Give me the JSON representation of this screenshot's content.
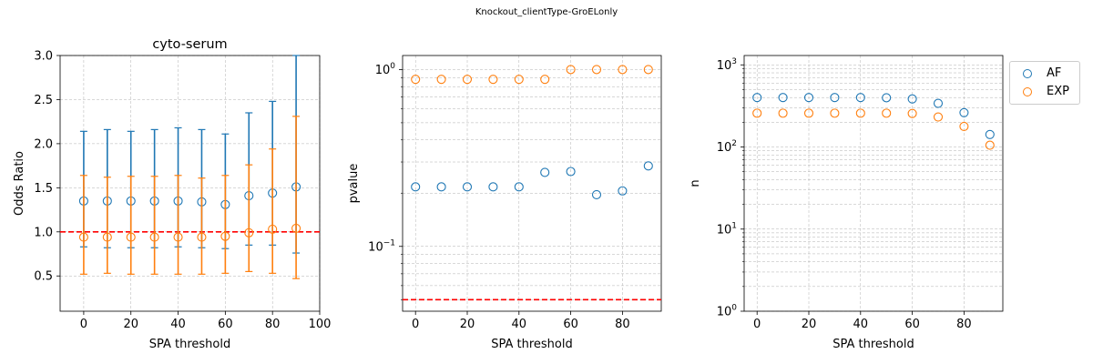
{
  "figure": {
    "suptitle": "Knockout_clientType-GroELonly"
  },
  "colors": {
    "AF": "#1f77b4",
    "EXP": "#ff7f0e",
    "ref_line": "#ff0000",
    "grid": "#b0b0b0"
  },
  "legend": {
    "placement": "outside-top-right",
    "entries": [
      "AF",
      "EXP"
    ]
  },
  "chart_data": [
    {
      "type": "scatter",
      "title": "cyto-serum",
      "xlabel": "SPA threshold",
      "ylabel": "Odds Ratio",
      "xlim": [
        -10,
        100
      ],
      "ylim": [
        0.1,
        3.0
      ],
      "yscale": "linear",
      "grid": true,
      "xticks": [
        "0",
        "20",
        "40",
        "60",
        "80",
        "100"
      ],
      "yticks": [
        "0.5",
        "1.0",
        "1.5",
        "2.0",
        "2.5",
        "3.0"
      ],
      "reference_line": {
        "y": 1.0,
        "style": "dashed"
      },
      "x": [
        0,
        10,
        20,
        30,
        40,
        50,
        60,
        70,
        80,
        90
      ],
      "series": [
        {
          "name": "AF",
          "values": [
            1.35,
            1.35,
            1.35,
            1.35,
            1.35,
            1.34,
            1.31,
            1.41,
            1.44,
            1.51
          ],
          "lower": [
            0.83,
            0.82,
            0.82,
            0.82,
            0.83,
            0.82,
            0.81,
            0.85,
            0.85,
            0.76
          ],
          "upper": [
            2.14,
            2.16,
            2.14,
            2.16,
            2.18,
            2.16,
            2.11,
            2.35,
            2.48,
            3.0
          ]
        },
        {
          "name": "EXP",
          "values": [
            0.94,
            0.94,
            0.94,
            0.94,
            0.94,
            0.94,
            0.95,
            0.99,
            1.03,
            1.04
          ],
          "lower": [
            0.52,
            0.53,
            0.52,
            0.52,
            0.52,
            0.52,
            0.53,
            0.55,
            0.53,
            0.47
          ],
          "upper": [
            1.64,
            1.62,
            1.63,
            1.63,
            1.64,
            1.61,
            1.64,
            1.76,
            1.94,
            2.31
          ]
        }
      ]
    },
    {
      "type": "scatter",
      "title": "",
      "xlabel": "SPA threshold",
      "ylabel": "pvalue",
      "xlim": [
        -5,
        95
      ],
      "ylim": [
        0.043,
        1.2
      ],
      "yscale": "log",
      "grid": true,
      "xticks": [
        "0",
        "20",
        "40",
        "60",
        "80"
      ],
      "reference_line": {
        "y": 0.05,
        "style": "dashed"
      },
      "x": [
        0,
        10,
        20,
        30,
        40,
        50,
        60,
        70,
        80,
        90
      ],
      "series": [
        {
          "name": "AF",
          "values": [
            0.217,
            0.217,
            0.217,
            0.217,
            0.217,
            0.262,
            0.265,
            0.196,
            0.206,
            0.285
          ]
        },
        {
          "name": "EXP",
          "values": [
            0.88,
            0.88,
            0.88,
            0.88,
            0.88,
            0.88,
            1.0,
            1.0,
            1.0,
            1.0
          ]
        }
      ]
    },
    {
      "type": "scatter",
      "title": "",
      "xlabel": "SPA threshold",
      "ylabel": "n",
      "xlim": [
        -5,
        95
      ],
      "ylim": [
        1,
        1300
      ],
      "yscale": "log",
      "grid": true,
      "xticks": [
        "0",
        "20",
        "40",
        "60",
        "80"
      ],
      "x": [
        0,
        10,
        20,
        30,
        40,
        50,
        60,
        70,
        80,
        90
      ],
      "series": [
        {
          "name": "AF",
          "values": [
            400,
            400,
            400,
            400,
            400,
            398,
            385,
            340,
            262,
            142
          ]
        },
        {
          "name": "EXP",
          "values": [
            258,
            258,
            258,
            258,
            258,
            258,
            256,
            232,
            178,
            105
          ]
        }
      ]
    }
  ]
}
